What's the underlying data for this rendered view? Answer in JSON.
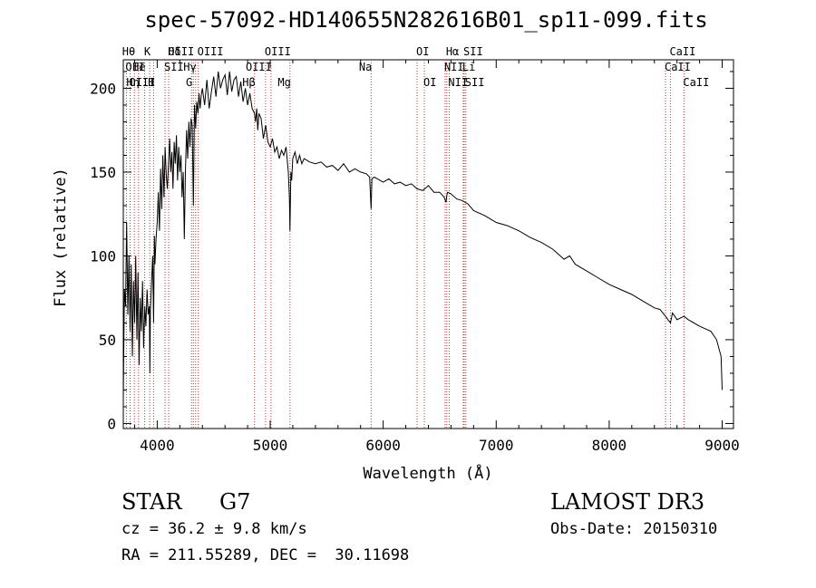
{
  "chart_data": {
    "type": "line",
    "title": "spec-57092-HD140655N282616B01_sp11-099.fits",
    "xlabel": "Wavelength (Å)",
    "ylabel": "Flux (relative)",
    "xlim": [
      3700,
      9100
    ],
    "ylim": [
      -3,
      217
    ],
    "xticks": [
      4000,
      5000,
      6000,
      7000,
      8000,
      9000
    ],
    "yticks": [
      0,
      50,
      100,
      150,
      200
    ],
    "xtick_labels": [
      "4000",
      "5000",
      "6000",
      "7000",
      "8000",
      "9000"
    ],
    "ytick_labels": [
      "0",
      "50",
      "100",
      "150",
      "200"
    ],
    "series": [
      {
        "name": "flux",
        "x": [
          3700,
          3710,
          3720,
          3730,
          3740,
          3750,
          3760,
          3770,
          3780,
          3790,
          3800,
          3810,
          3820,
          3830,
          3840,
          3850,
          3860,
          3870,
          3880,
          3890,
          3900,
          3910,
          3920,
          3930,
          3935,
          3940,
          3950,
          3960,
          3968,
          3975,
          3980,
          3990,
          4000,
          4010,
          4020,
          4030,
          4040,
          4050,
          4060,
          4070,
          4080,
          4090,
          4102,
          4110,
          4120,
          4130,
          4140,
          4150,
          4160,
          4170,
          4180,
          4190,
          4200,
          4210,
          4220,
          4230,
          4240,
          4250,
          4260,
          4270,
          4280,
          4290,
          4300,
          4310,
          4320,
          4330,
          4340,
          4350,
          4360,
          4370,
          4380,
          4390,
          4400,
          4420,
          4440,
          4460,
          4480,
          4500,
          4520,
          4540,
          4560,
          4580,
          4600,
          4620,
          4640,
          4660,
          4680,
          4700,
          4720,
          4740,
          4760,
          4780,
          4800,
          4820,
          4840,
          4861,
          4870,
          4880,
          4890,
          4900,
          4920,
          4940,
          4960,
          4980,
          5000,
          5020,
          5040,
          5060,
          5080,
          5100,
          5120,
          5140,
          5160,
          5170,
          5175,
          5183,
          5190,
          5200,
          5220,
          5240,
          5260,
          5280,
          5300,
          5350,
          5400,
          5450,
          5500,
          5550,
          5600,
          5650,
          5700,
          5750,
          5800,
          5850,
          5880,
          5893,
          5900,
          5920,
          5950,
          6000,
          6050,
          6100,
          6150,
          6200,
          6250,
          6300,
          6350,
          6400,
          6450,
          6500,
          6540,
          6556,
          6563,
          6570,
          6600,
          6650,
          6700,
          6750,
          6800,
          6900,
          7000,
          7100,
          7200,
          7300,
          7400,
          7500,
          7600,
          7650,
          7700,
          7800,
          7900,
          8000,
          8100,
          8200,
          8300,
          8400,
          8450,
          8498,
          8520,
          8542,
          8560,
          8600,
          8662,
          8700,
          8800,
          8900,
          8950,
          8990,
          9000
        ],
        "y": [
          15,
          80,
          70,
          120,
          65,
          100,
          55,
          95,
          40,
          85,
          60,
          100,
          50,
          90,
          35,
          75,
          55,
          85,
          45,
          70,
          58,
          80,
          65,
          70,
          30,
          68,
          85,
          100,
          60,
          112,
          95,
          110,
          120,
          138,
          115,
          152,
          128,
          160,
          135,
          165,
          148,
          140,
          158,
          170,
          150,
          162,
          140,
          168,
          155,
          172,
          145,
          165,
          150,
          160,
          135,
          150,
          110,
          150,
          175,
          158,
          180,
          165,
          182,
          178,
          130,
          190,
          176,
          192,
          185,
          197,
          188,
          196,
          200,
          190,
          205,
          188,
          198,
          207,
          195,
          210,
          200,
          205,
          208,
          196,
          210,
          198,
          205,
          207,
          195,
          204,
          192,
          200,
          190,
          197,
          188,
          185,
          180,
          188,
          175,
          185,
          182,
          170,
          178,
          168,
          165,
          170,
          162,
          165,
          158,
          163,
          160,
          165,
          150,
          135,
          115,
          150,
          145,
          158,
          162,
          155,
          160,
          155,
          158,
          156,
          155,
          156,
          153,
          154,
          151,
          155,
          150,
          152,
          150,
          149,
          147,
          128,
          146,
          147,
          146,
          144,
          146,
          143,
          144,
          142,
          143,
          140,
          139,
          142,
          138,
          138,
          135,
          132,
          136,
          138,
          137,
          134,
          133,
          131,
          127,
          124,
          120,
          118,
          115,
          111,
          108,
          104,
          98,
          100,
          95,
          91,
          87,
          83,
          80,
          77,
          73,
          69,
          68,
          64,
          62,
          60,
          66,
          62,
          64,
          62,
          58,
          55,
          50,
          40,
          20
        ]
      }
    ],
    "line_markers": [
      {
        "label": "Hθ",
        "wavelength": 3798,
        "row": 0,
        "side": "left"
      },
      {
        "label": "OII",
        "wavelength": 3727,
        "row": 1,
        "side": "right"
      },
      {
        "label": "OIII",
        "wavelength": 3760,
        "row": 2,
        "side": "right"
      },
      {
        "label": "Hη",
        "wavelength": 3835,
        "row": 2,
        "side": "left"
      },
      {
        "label": "He",
        "wavelength": 3889,
        "row": 1,
        "side": "left"
      },
      {
        "label": "K",
        "wavelength": 3934,
        "row": 0,
        "side": "left"
      },
      {
        "label": "H",
        "wavelength": 3968,
        "row": 2,
        "side": "left"
      },
      {
        "label": "SII",
        "wavelength": 4069,
        "row": 1,
        "side": "right"
      },
      {
        "label": "Hδ",
        "wavelength": 4102,
        "row": 0,
        "side": "right"
      },
      {
        "label": "OIII",
        "wavelength": 4320,
        "row": 0,
        "side": "left"
      },
      {
        "label": "Hγ",
        "wavelength": 4340,
        "row": 1,
        "side": "left"
      },
      {
        "label": "G",
        "wavelength": 4304,
        "row": 2,
        "side": "left"
      },
      {
        "label": "OIII",
        "wavelength": 4363,
        "row": 0,
        "side": "right"
      },
      {
        "label": "Hβ",
        "wavelength": 4861,
        "row": 2,
        "side": "left"
      },
      {
        "label": "OIII",
        "wavelength": 4959,
        "row": 0,
        "side": "right"
      },
      {
        "label": "OIII",
        "wavelength": 5007,
        "row": 1,
        "side": "left"
      },
      {
        "label": "Mg",
        "wavelength": 5175,
        "row": 2,
        "side": "left"
      },
      {
        "label": "Na",
        "wavelength": 5893,
        "row": 1,
        "side": "left"
      },
      {
        "label": "OI",
        "wavelength": 6300,
        "row": 0,
        "side": "right"
      },
      {
        "label": "OI",
        "wavelength": 6364,
        "row": 2,
        "side": "right"
      },
      {
        "label": "Hα",
        "wavelength": 6563,
        "row": 0,
        "side": "right"
      },
      {
        "label": "NII",
        "wavelength": 6548,
        "row": 1,
        "side": "right"
      },
      {
        "label": "NII",
        "wavelength": 6584,
        "row": 2,
        "side": "right"
      },
      {
        "label": "SII",
        "wavelength": 6717,
        "row": 0,
        "side": "right"
      },
      {
        "label": "Li",
        "wavelength": 6708,
        "row": 1,
        "side": "right"
      },
      {
        "label": "SII",
        "wavelength": 6731,
        "row": 2,
        "side": "right"
      },
      {
        "label": "CaII",
        "wavelength": 8542,
        "row": 0,
        "side": "right"
      },
      {
        "label": "CaII",
        "wavelength": 8498,
        "row": 1,
        "side": "right"
      },
      {
        "label": "CaII",
        "wavelength": 8662,
        "row": 2,
        "side": "right"
      }
    ]
  },
  "info": {
    "object_class": "STAR",
    "subclass": "G7",
    "survey": "LAMOST DR3",
    "redshift": "cz = 36.2 ± 9.8 km/s",
    "obs_date": "Obs-Date: 20150310",
    "coords": "RA = 211.55289, DEC =  30.11698"
  }
}
